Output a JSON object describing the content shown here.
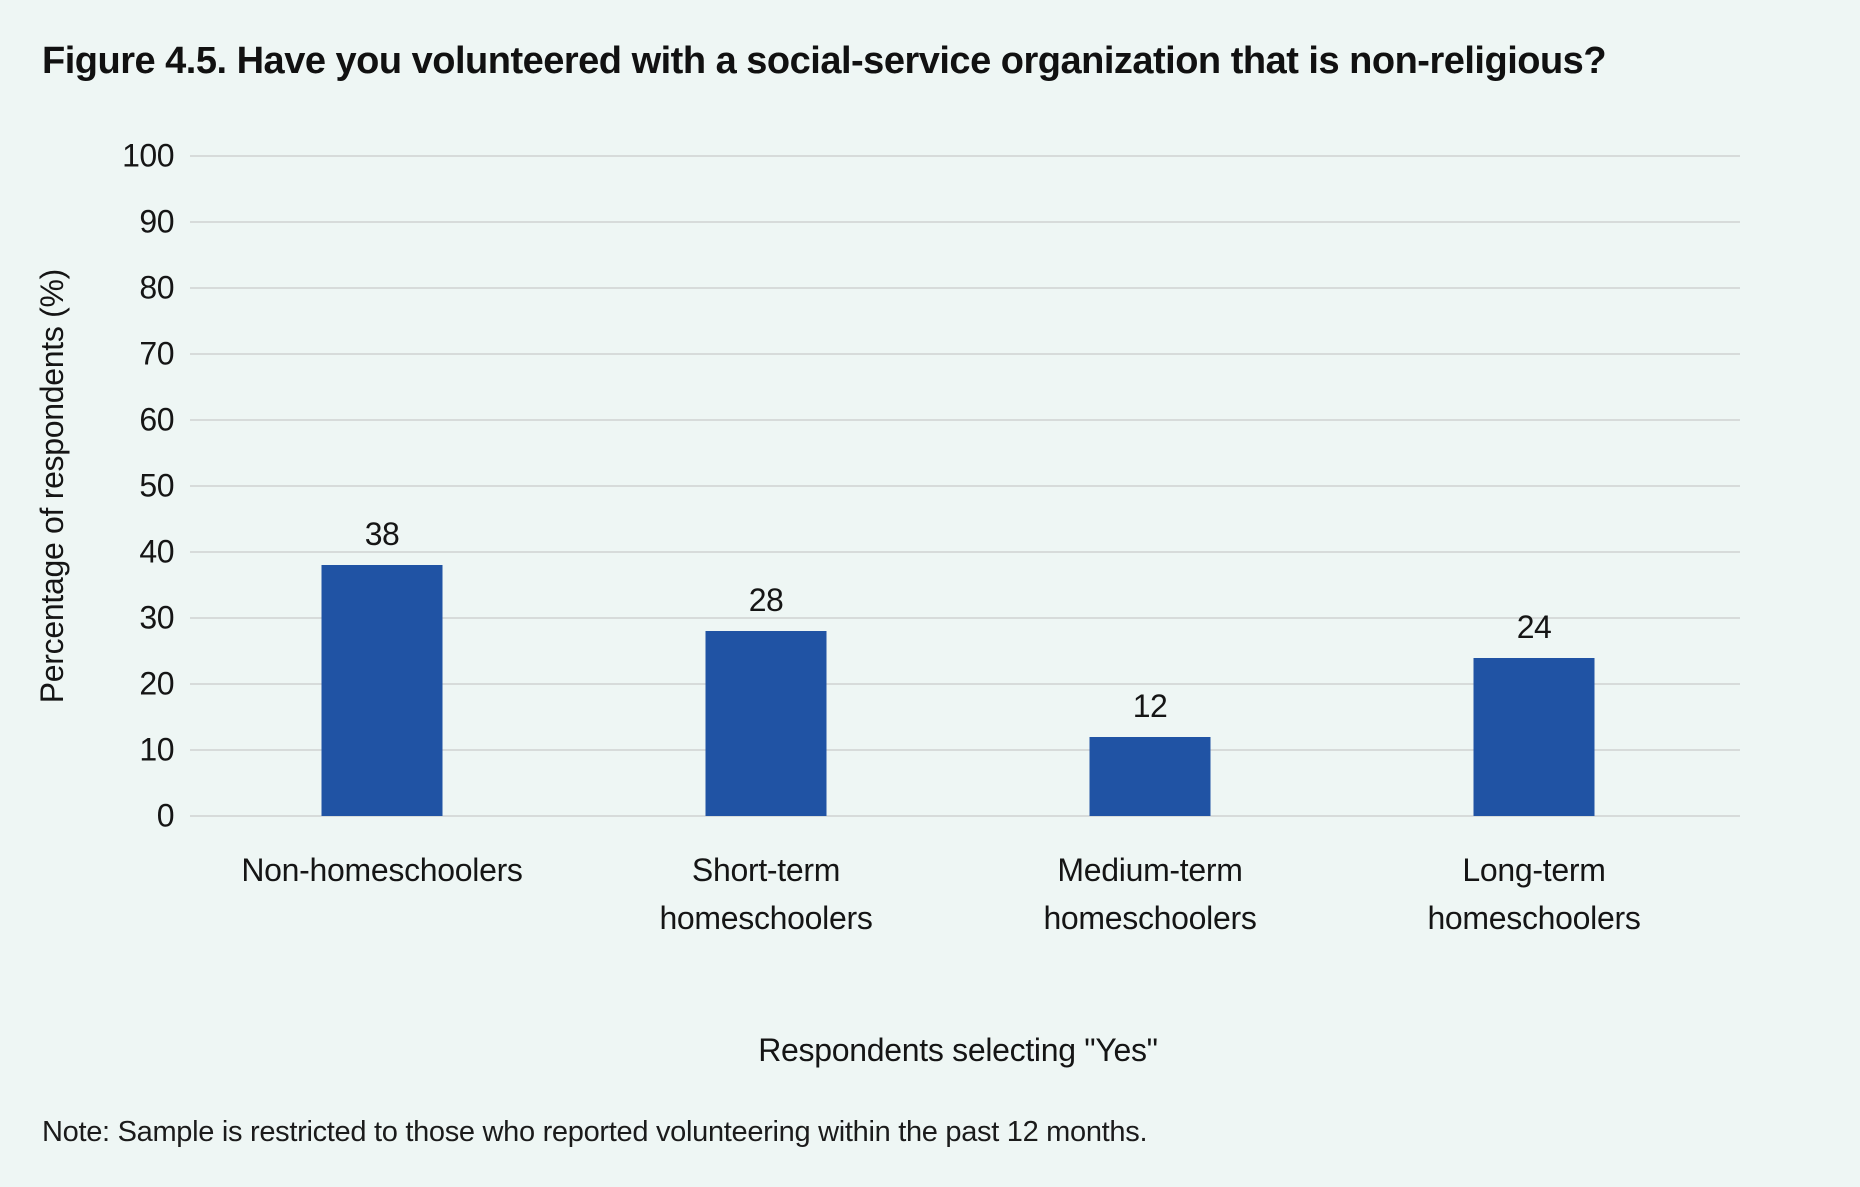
{
  "figure": {
    "note": "Note: Sample is restricted to those who reported volunteering within the past 12 months.",
    "background_color": "#EEF6F4"
  },
  "chart_data": {
    "type": "bar",
    "title": "Figure 4.5. Have you volunteered with a social-service organization that is non-religious?",
    "categories": [
      "Non-homeschoolers",
      "Short-term homeschoolers",
      "Medium-term homeschoolers",
      "Long-term homeschoolers"
    ],
    "values": [
      38,
      28,
      12,
      24
    ],
    "value_labels": [
      "38",
      "28",
      "12",
      "24"
    ],
    "xlabel": "Respondents selecting \"Yes\"",
    "ylabel": "Percentage of respondents (%)",
    "ylim": [
      0,
      100
    ],
    "yticks": [
      0,
      10,
      20,
      30,
      40,
      50,
      60,
      70,
      80,
      90,
      100
    ],
    "grid": true,
    "legend": false,
    "bar_color": "#2053A4",
    "gridline_color": "#D7DBDA",
    "text_color": "#151515"
  }
}
